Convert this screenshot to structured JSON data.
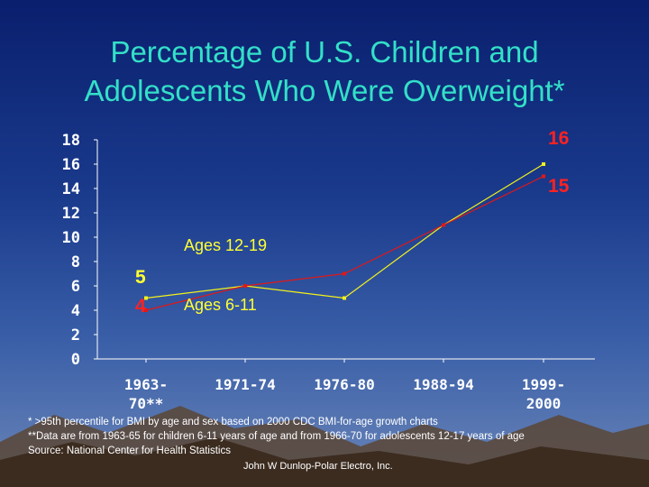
{
  "title_lines": [
    "Percentage of U.S. Children and",
    "Adolescents Who Were Overweight*"
  ],
  "chart_data": {
    "type": "line",
    "categories": [
      "1963-70**",
      "1971-74",
      "1976-80",
      "1988-94",
      "1999-2000"
    ],
    "category_lines": [
      [
        "1963-",
        "70**"
      ],
      [
        "1971-74"
      ],
      [
        "1976-80"
      ],
      [
        "1988-94"
      ],
      [
        "1999-",
        "2000"
      ]
    ],
    "ylim": [
      0,
      18
    ],
    "yticks": [
      0,
      2,
      4,
      6,
      8,
      10,
      12,
      14,
      16,
      18
    ],
    "series": [
      {
        "name": "Ages 12-19",
        "values": [
          5,
          6,
          5,
          11,
          16
        ],
        "color": "#f2f21a"
      },
      {
        "name": "Ages 6-11",
        "values": [
          4,
          6,
          7,
          11,
          15
        ],
        "color": "#e01818"
      }
    ],
    "data_labels": {
      "start_top": "5",
      "start_bottom": "4",
      "end_top": "16",
      "end_bottom": "15"
    },
    "grid": false,
    "colors": {
      "axis": "#ffffff",
      "tick_label": "#ffffff",
      "series_label": "#ffff33",
      "value_label": "#ff2222"
    }
  },
  "footnotes": [
    "* >95th percentile for BMI by age and sex based on 2000 CDC BMI-for-age growth charts",
    "**Data are from 1963-65 for children 6-11 years of age and from 1966-70 for adolescents 12-17 years of age",
    "Source:   National Center for Health Statistics"
  ],
  "credit": "John W Dunlop-Polar Electro, Inc."
}
